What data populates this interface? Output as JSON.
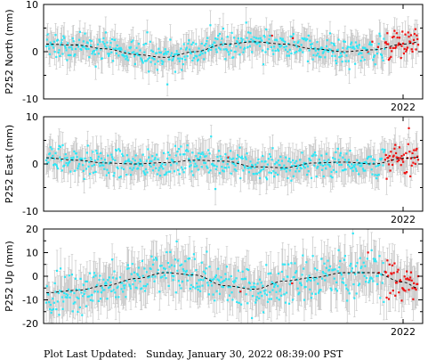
{
  "colors": {
    "points": "#2ee6f5",
    "recent_points": "#ee1111",
    "error_bars": "#c6c6c6",
    "trend": "#000000",
    "frame": "#000000"
  },
  "footer": {
    "label": "Plot Last Updated:",
    "value": "Sunday, January 30, 2022 08:39:00 PST"
  },
  "chart_data": [
    {
      "type": "scatter",
      "ylabel": "P252 North (mm)",
      "ylim": [
        -10,
        10
      ],
      "yticks": [
        "10",
        "0",
        "-10"
      ],
      "xtick_label": "2022",
      "trend_model": [
        {
          "t": 0.0,
          "y": 1.6
        },
        {
          "t": 0.08,
          "y": 1.4
        },
        {
          "t": 0.16,
          "y": 0.6
        },
        {
          "t": 0.24,
          "y": -0.6
        },
        {
          "t": 0.32,
          "y": -1.2
        },
        {
          "t": 0.4,
          "y": 0.0
        },
        {
          "t": 0.48,
          "y": 1.6
        },
        {
          "t": 0.56,
          "y": 2.1
        },
        {
          "t": 0.64,
          "y": 1.6
        },
        {
          "t": 0.72,
          "y": 0.6
        },
        {
          "t": 0.8,
          "y": 0.0
        },
        {
          "t": 0.88,
          "y": 0.4
        },
        {
          "t": 0.96,
          "y": 1.6
        },
        {
          "t": 1.0,
          "y": 2.0
        }
      ],
      "noise": 1.4,
      "error": 2.6,
      "red_from": 0.91
    },
    {
      "type": "scatter",
      "ylabel": "P252 East (mm)",
      "ylim": [
        -10,
        10
      ],
      "yticks": [
        "10",
        "0",
        "-10"
      ],
      "xtick_label": "2022",
      "trend_model": [
        {
          "t": 0.0,
          "y": 1.3
        },
        {
          "t": 0.08,
          "y": 0.8
        },
        {
          "t": 0.16,
          "y": 0.2
        },
        {
          "t": 0.24,
          "y": 0.0
        },
        {
          "t": 0.32,
          "y": 0.3
        },
        {
          "t": 0.4,
          "y": 0.8
        },
        {
          "t": 0.48,
          "y": 0.6
        },
        {
          "t": 0.56,
          "y": -0.6
        },
        {
          "t": 0.64,
          "y": -0.8
        },
        {
          "t": 0.72,
          "y": 0.2
        },
        {
          "t": 0.8,
          "y": 0.4
        },
        {
          "t": 0.88,
          "y": 0.0
        },
        {
          "t": 0.96,
          "y": 1.2
        },
        {
          "t": 1.0,
          "y": 1.4
        }
      ],
      "noise": 1.5,
      "error": 2.8,
      "red_from": 0.91
    },
    {
      "type": "scatter",
      "ylabel": "P252 Up (mm)",
      "ylim": [
        -20,
        20
      ],
      "yticks": [
        "20",
        "10",
        "0",
        "-10",
        "-20"
      ],
      "xtick_label": "2022",
      "trend_model": [
        {
          "t": 0.0,
          "y": -7.0
        },
        {
          "t": 0.08,
          "y": -6.0
        },
        {
          "t": 0.16,
          "y": -4.0
        },
        {
          "t": 0.24,
          "y": -1.0
        },
        {
          "t": 0.32,
          "y": 1.5
        },
        {
          "t": 0.4,
          "y": 0.5
        },
        {
          "t": 0.48,
          "y": -4.0
        },
        {
          "t": 0.56,
          "y": -5.5
        },
        {
          "t": 0.64,
          "y": -2.0
        },
        {
          "t": 0.72,
          "y": -0.5
        },
        {
          "t": 0.8,
          "y": 1.5
        },
        {
          "t": 0.88,
          "y": 1.5
        },
        {
          "t": 0.96,
          "y": -2.5
        },
        {
          "t": 1.0,
          "y": -5.0
        }
      ],
      "noise": 4.5,
      "error": 7.5,
      "red_from": 0.91
    }
  ]
}
